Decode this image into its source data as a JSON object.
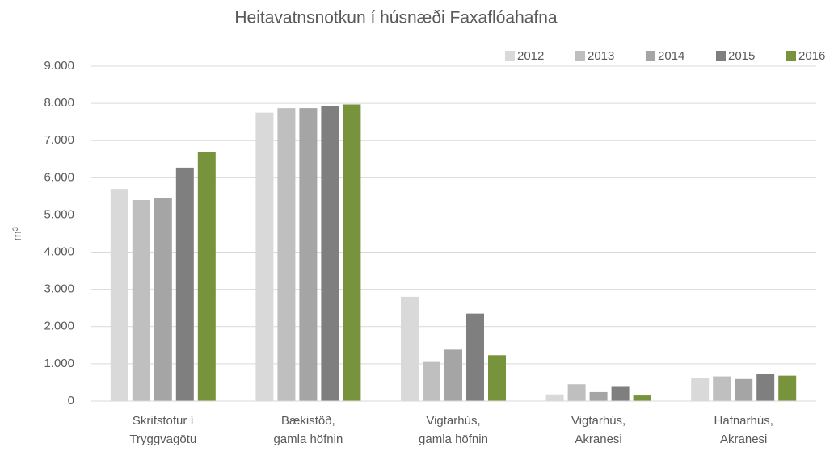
{
  "chart_data": {
    "type": "bar",
    "title": "Heitavatnsnotkun í húsnæði Faxaflóahafna",
    "y_label": "m³",
    "categories": [
      [
        "Skrifstofur í",
        "Tryggvagötu"
      ],
      [
        "Bækistöð,",
        "gamla höfnin"
      ],
      [
        "Vigtarhús,",
        "gamla höfnin"
      ],
      [
        "Vigtarhús,",
        "Akranesi"
      ],
      [
        "Hafnarhús,",
        "Akranesi"
      ]
    ],
    "series": [
      {
        "name": "2012",
        "color": "#d9d9d9",
        "values": [
          5700,
          7750,
          2800,
          180,
          610
        ]
      },
      {
        "name": "2013",
        "color": "#bfbfbf",
        "values": [
          5400,
          7870,
          1050,
          450,
          660
        ]
      },
      {
        "name": "2014",
        "color": "#a5a5a5",
        "values": [
          5450,
          7870,
          1380,
          240,
          590
        ]
      },
      {
        "name": "2015",
        "color": "#7f7f7f",
        "values": [
          6270,
          7930,
          2350,
          380,
          720
        ]
      },
      {
        "name": "2016",
        "color": "#77933c",
        "values": [
          6700,
          7970,
          1230,
          150,
          680
        ]
      }
    ],
    "ylim": [
      0,
      9000
    ],
    "yticks": [
      0,
      {
        "value": 1000,
        "label": "1.000"
      },
      {
        "value": 2000,
        "label": "2.000"
      },
      {
        "value": 3000,
        "label": "3.000"
      },
      {
        "value": 4000,
        "label": "4.000"
      },
      {
        "value": 5000,
        "label": "5.000"
      },
      {
        "value": 6000,
        "label": "6.000"
      },
      {
        "value": 7000,
        "label": "7.000"
      },
      {
        "value": 8000,
        "label": "8.000"
      },
      {
        "value": 9000,
        "label": "9.000"
      }
    ],
    "grid": true,
    "legend": "top-right"
  }
}
